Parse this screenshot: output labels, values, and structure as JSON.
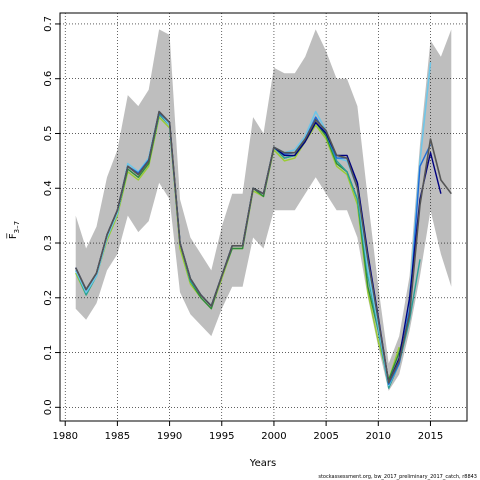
{
  "chart_data": {
    "type": "line",
    "xlabel": "Years",
    "ylabel": "F̅ 3–7",
    "ylabel_main": "F̅",
    "ylabel_sub": "3–7",
    "xlim": [
      1979.5,
      2018.5
    ],
    "ylim": [
      -0.025,
      0.72
    ],
    "xticks": [
      1980,
      1985,
      1990,
      1995,
      2000,
      2005,
      2010,
      2015
    ],
    "yticks": [
      0.0,
      0.1,
      0.2,
      0.3,
      0.4,
      0.5,
      0.6,
      0.7
    ],
    "ytick_labels": [
      "0.0",
      "0.1",
      "0.2",
      "0.3",
      "0.4",
      "0.5",
      "0.6",
      "0.7"
    ],
    "grid": true,
    "credit": "stockassessment.org, bw_2017_preliminary_2017_catch, r8843",
    "confidence_band": {
      "x": [
        1981,
        1982,
        1983,
        1984,
        1985,
        1986,
        1987,
        1988,
        1989,
        1990,
        1991,
        1992,
        1993,
        1994,
        1995,
        1996,
        1997,
        1998,
        1999,
        2000,
        2001,
        2002,
        2003,
        2004,
        2005,
        2006,
        2007,
        2008,
        2009,
        2010,
        2011,
        2012,
        2013,
        2014,
        2015,
        2016,
        2017
      ],
      "upper": [
        0.35,
        0.29,
        0.33,
        0.42,
        0.47,
        0.57,
        0.55,
        0.58,
        0.69,
        0.68,
        0.38,
        0.31,
        0.28,
        0.25,
        0.33,
        0.39,
        0.39,
        0.53,
        0.5,
        0.62,
        0.61,
        0.61,
        0.64,
        0.69,
        0.65,
        0.6,
        0.6,
        0.55,
        0.38,
        0.22,
        0.08,
        0.13,
        0.24,
        0.48,
        0.67,
        0.64,
        0.69
      ],
      "lower": [
        0.18,
        0.16,
        0.19,
        0.25,
        0.28,
        0.35,
        0.32,
        0.34,
        0.41,
        0.38,
        0.21,
        0.17,
        0.15,
        0.13,
        0.18,
        0.22,
        0.22,
        0.31,
        0.29,
        0.36,
        0.36,
        0.36,
        0.39,
        0.42,
        0.39,
        0.36,
        0.36,
        0.31,
        0.2,
        0.11,
        0.03,
        0.06,
        0.14,
        0.24,
        0.36,
        0.28,
        0.22
      ]
    },
    "series": [
      {
        "color": "#555555",
        "width": 1.6,
        "x": [
          1981,
          1982,
          1983,
          1984,
          1985,
          1986,
          1987,
          1988,
          1989,
          1990,
          1991,
          1992,
          1993,
          1994,
          1995,
          1996,
          1997,
          1998,
          1999,
          2000,
          2001,
          2002,
          2003,
          2004,
          2005,
          2006,
          2007,
          2008,
          2009,
          2010,
          2011,
          2012,
          2013,
          2014,
          2015,
          2016,
          2017
        ],
        "y": [
          0.255,
          0.215,
          0.245,
          0.315,
          0.36,
          0.44,
          0.425,
          0.45,
          0.54,
          0.52,
          0.3,
          0.235,
          0.205,
          0.185,
          0.24,
          0.295,
          0.295,
          0.4,
          0.39,
          0.475,
          0.465,
          0.465,
          0.49,
          0.525,
          0.505,
          0.46,
          0.455,
          0.4,
          0.27,
          0.16,
          0.045,
          0.085,
          0.17,
          0.37,
          0.49,
          0.415,
          0.39
        ]
      },
      {
        "color": "#000080",
        "width": 1.4,
        "x": [
          1981,
          1982,
          1983,
          1984,
          1985,
          1986,
          1987,
          1988,
          1989,
          1990,
          1991,
          1992,
          1993,
          1994,
          1995,
          1996,
          1997,
          1998,
          1999,
          2000,
          2001,
          2002,
          2003,
          2004,
          2005,
          2006,
          2007,
          2008,
          2009,
          2010,
          2011,
          2012,
          2013,
          2014,
          2015,
          2016
        ],
        "y": [
          0.255,
          0.215,
          0.245,
          0.315,
          0.36,
          0.44,
          0.425,
          0.45,
          0.54,
          0.52,
          0.3,
          0.235,
          0.205,
          0.185,
          0.24,
          0.295,
          0.295,
          0.4,
          0.39,
          0.475,
          0.46,
          0.46,
          0.485,
          0.52,
          0.5,
          0.46,
          0.46,
          0.41,
          0.28,
          0.165,
          0.045,
          0.09,
          0.2,
          0.38,
          0.465,
          0.39
        ]
      },
      {
        "color": "#1e6bd6",
        "width": 1.4,
        "x": [
          1981,
          1982,
          1983,
          1984,
          1985,
          1986,
          1987,
          1988,
          1989,
          1990,
          1991,
          1992,
          1993,
          1994,
          1995,
          1996,
          1997,
          1998,
          1999,
          2000,
          2001,
          2002,
          2003,
          2004,
          2005,
          2006,
          2007,
          2008,
          2009,
          2010,
          2011,
          2012,
          2013,
          2014,
          2015
        ],
        "y": [
          0.255,
          0.215,
          0.245,
          0.315,
          0.36,
          0.44,
          0.428,
          0.452,
          0.538,
          0.52,
          0.3,
          0.235,
          0.205,
          0.185,
          0.24,
          0.295,
          0.295,
          0.4,
          0.39,
          0.475,
          0.462,
          0.465,
          0.49,
          0.53,
          0.5,
          0.455,
          0.455,
          0.41,
          0.27,
          0.16,
          0.042,
          0.08,
          0.18,
          0.44,
          0.48
        ]
      },
      {
        "color": "#6ec6e8",
        "width": 1.6,
        "x": [
          1981,
          1982,
          1983,
          1984,
          1985,
          1986,
          1987,
          1988,
          1989,
          1990,
          1991,
          1992,
          1993,
          1994,
          1995,
          1996,
          1997,
          1998,
          1999,
          2000,
          2001,
          2002,
          2003,
          2004,
          2005,
          2006,
          2007,
          2008,
          2009,
          2010,
          2011,
          2012,
          2013,
          2014,
          2015
        ],
        "y": [
          0.25,
          0.21,
          0.24,
          0.31,
          0.355,
          0.445,
          0.43,
          0.455,
          0.54,
          0.515,
          0.3,
          0.235,
          0.205,
          0.185,
          0.24,
          0.295,
          0.295,
          0.4,
          0.39,
          0.475,
          0.465,
          0.47,
          0.495,
          0.54,
          0.505,
          0.455,
          0.45,
          0.4,
          0.25,
          0.15,
          0.04,
          0.08,
          0.2,
          0.45,
          0.63
        ]
      },
      {
        "color": "#2aa198",
        "width": 1.4,
        "x": [
          1981,
          1982,
          1983,
          1984,
          1985,
          1986,
          1987,
          1988,
          1989,
          1990,
          1991,
          1992,
          1993,
          1994,
          1995,
          1996,
          1997,
          1998,
          1999,
          2000,
          2001,
          2002,
          2003,
          2004,
          2005,
          2006,
          2007,
          2008,
          2009,
          2010,
          2011,
          2012,
          2013,
          2014
        ],
        "y": [
          0.25,
          0.205,
          0.24,
          0.31,
          0.355,
          0.44,
          0.425,
          0.45,
          0.535,
          0.515,
          0.3,
          0.23,
          0.205,
          0.185,
          0.24,
          0.295,
          0.295,
          0.4,
          0.39,
          0.475,
          0.455,
          0.46,
          0.49,
          0.52,
          0.5,
          0.45,
          0.43,
          0.38,
          0.24,
          0.14,
          0.035,
          0.08,
          0.16,
          0.27
        ]
      },
      {
        "color": "#2e8b3a",
        "width": 1.4,
        "x": [
          1981,
          1982,
          1983,
          1984,
          1985,
          1986,
          1987,
          1988,
          1989,
          1990,
          1991,
          1992,
          1993,
          1994,
          1995,
          1996,
          1997,
          1998,
          1999,
          2000,
          2001,
          2002,
          2003,
          2004,
          2005,
          2006,
          2007,
          2008,
          2009,
          2010,
          2011,
          2012,
          2013
        ],
        "y": [
          0.25,
          0.21,
          0.245,
          0.31,
          0.355,
          0.435,
          0.42,
          0.445,
          0.535,
          0.515,
          0.3,
          0.23,
          0.2,
          0.18,
          0.24,
          0.29,
          0.29,
          0.4,
          0.385,
          0.475,
          0.455,
          0.46,
          0.49,
          0.52,
          0.495,
          0.445,
          0.43,
          0.38,
          0.22,
          0.14,
          0.05,
          0.1,
          0.17
        ]
      },
      {
        "color": "#9acd32",
        "width": 1.4,
        "x": [
          1981,
          1982,
          1983,
          1984,
          1985,
          1986,
          1987,
          1988,
          1989,
          1990,
          1991,
          1992,
          1993,
          1994,
          1995,
          1996,
          1997,
          1998,
          1999,
          2000,
          2001,
          2002,
          2003,
          2004,
          2005,
          2006,
          2007,
          2008,
          2009,
          2010,
          2011,
          2012
        ],
        "y": [
          0.245,
          0.205,
          0.24,
          0.305,
          0.35,
          0.43,
          0.415,
          0.44,
          0.53,
          0.51,
          0.29,
          0.225,
          0.2,
          0.18,
          0.235,
          0.29,
          0.29,
          0.395,
          0.385,
          0.47,
          0.45,
          0.455,
          0.485,
          0.515,
          0.49,
          0.44,
          0.425,
          0.37,
          0.21,
          0.12,
          0.05,
          0.11
        ]
      }
    ]
  }
}
